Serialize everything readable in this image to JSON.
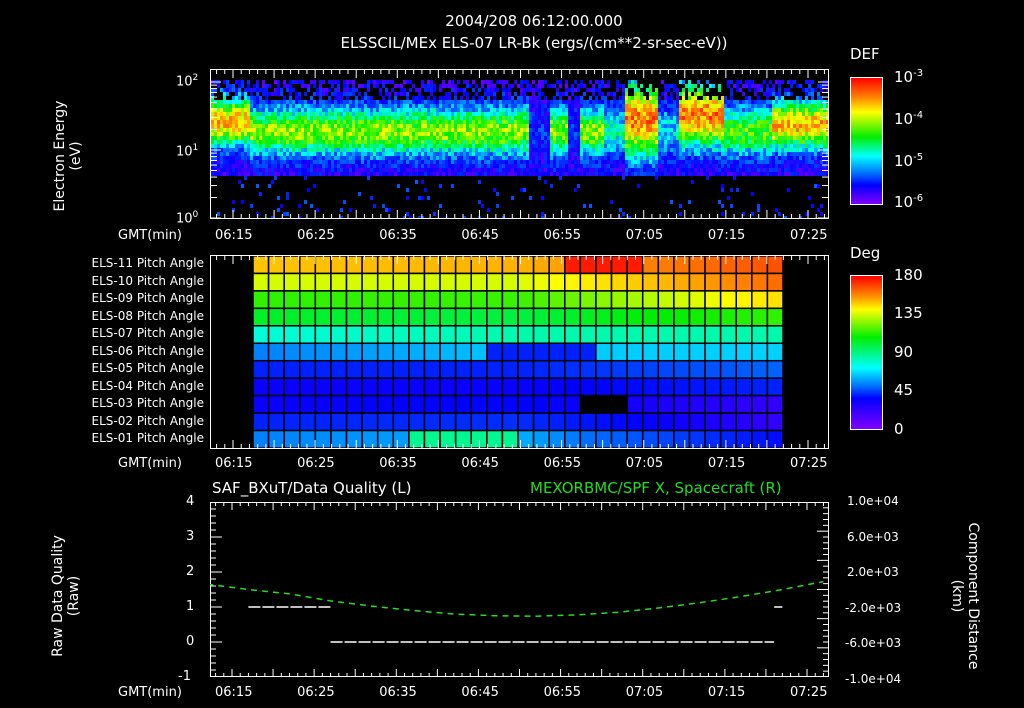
{
  "header": {
    "date_time": "2004/208 06:12:00.000",
    "subtitle": "ELSSCIL/MEx ELS-07 LR-Bk  (ergs/(cm**2-sr-sec-eV))"
  },
  "time_axis": {
    "label": "GMT(min)",
    "ticks": [
      "06:15",
      "06:25",
      "06:35",
      "06:45",
      "06:55",
      "07:05",
      "07:15",
      "07:25"
    ]
  },
  "panel1": {
    "ylabel_line1": "Electron Energy",
    "ylabel_line2": "(eV)",
    "yticks": [
      "10",
      "10",
      "10"
    ],
    "yticks_exp": [
      "2",
      "1",
      "0"
    ],
    "colorbar": {
      "title": "DEF",
      "ticks": [
        "10",
        "10",
        "10",
        "10"
      ],
      "ticks_exp": [
        "-3",
        "-4",
        "-5",
        "-6"
      ]
    }
  },
  "panel2": {
    "rows": [
      "ELS-11 Pitch Angle",
      "ELS-10 Pitch Angle",
      "ELS-09 Pitch Angle",
      "ELS-08 Pitch Angle",
      "ELS-07 Pitch Angle",
      "ELS-06 Pitch Angle",
      "ELS-05 Pitch Angle",
      "ELS-04 Pitch Angle",
      "ELS-03 Pitch Angle",
      "ELS-02 Pitch Angle",
      "ELS-01 Pitch Angle"
    ],
    "colorbar": {
      "title": "Deg",
      "ticks": [
        "180",
        "135",
        "90",
        "45",
        "0"
      ]
    }
  },
  "panel3": {
    "left_title": "SAF_BXuT/Data Quality (L)",
    "right_title": "MEXORBMC/SPF X, Spacecraft (R)",
    "right_title_color": "#22dd22",
    "ylabel_left_line1": "Raw Data Quality",
    "ylabel_left_line2": "(Raw)",
    "ylabel_right_line1": "Component Distance",
    "ylabel_right_line2": "(km)",
    "yticks_left": [
      "4",
      "3",
      "2",
      "1",
      "0",
      "-1"
    ],
    "yticks_right": [
      "1.0e+04",
      "6.0e+03",
      "2.0e+03",
      "-2.0e+03",
      "-6.0e+03",
      "-1.0e+04"
    ]
  },
  "chart_data": [
    {
      "type": "heatmap",
      "title": "ELSSCIL/MEx ELS-07 LR-Bk (ergs/(cm**2-sr-sec-eV))",
      "xlabel": "GMT(min)",
      "ylabel": "Electron Energy (eV)",
      "x_ticks": [
        "06:15",
        "06:25",
        "06:35",
        "06:45",
        "06:55",
        "07:05",
        "07:15",
        "07:25"
      ],
      "y_scale": "log",
      "ylim": [
        1,
        150
      ],
      "colorbar": {
        "label": "DEF",
        "scale": "log",
        "range": [
          1e-06,
          0.001
        ]
      },
      "description": "Electron spectrogram; enhanced flux (~1e-4) between ~5-60 eV with peaks near 06:12-06:18, 07:03-07:06 and 07:09-07:14, and 07:21-07:27; gaps near 06:53 and 06:57; background noise below 4 eV"
    },
    {
      "type": "heatmap",
      "title": "ELS Pitch Angle",
      "xlabel": "GMT(min)",
      "categories": [
        "ELS-11",
        "ELS-10",
        "ELS-09",
        "ELS-08",
        "ELS-07",
        "ELS-06",
        "ELS-05",
        "ELS-04",
        "ELS-03",
        "ELS-02",
        "ELS-01"
      ],
      "x_ticks": [
        "06:15",
        "06:25",
        "06:35",
        "06:45",
        "06:55",
        "07:05",
        "07:15",
        "07:25"
      ],
      "colorbar": {
        "label": "Deg",
        "range": [
          0,
          180
        ],
        "ticks": [
          0,
          45,
          90,
          135,
          180
        ]
      },
      "data_range": [
        "06:17",
        "07:21"
      ],
      "approx_values_start": [
        145,
        130,
        110,
        100,
        80,
        60,
        40,
        30,
        30,
        40,
        60
      ],
      "approx_values_end": [
        165,
        160,
        140,
        110,
        85,
        70,
        55,
        40,
        20,
        20,
        35
      ],
      "missing": [
        {
          "row": "ELS-03",
          "from": "07:01",
          "to": "07:06"
        }
      ]
    },
    {
      "type": "line",
      "title_left": "SAF_BXuT/Data Quality (L)",
      "title_right": "MEXORBMC/SPF X, Spacecraft (R)",
      "xlabel": "GMT(min)",
      "ylabel_left": "Raw Data Quality (Raw)",
      "ylabel_right": "Component Distance (km)",
      "ylim_left": [
        -1,
        4
      ],
      "ylim_right": [
        -10000,
        10000
      ],
      "x": [
        "06:12",
        "06:17",
        "06:22",
        "06:27",
        "06:32",
        "06:37",
        "06:42",
        "06:47",
        "06:52",
        "06:57",
        "07:02",
        "07:07",
        "07:12",
        "07:17",
        "07:22",
        "07:27"
      ],
      "series": [
        {
          "name": "Data Quality",
          "axis": "left",
          "color": "#ffffff",
          "segments": [
            {
              "from": "06:17",
              "to": "06:27",
              "value": 1
            },
            {
              "from": "06:27",
              "to": "07:21",
              "value": 0
            },
            {
              "from": "07:21",
              "to": "07:22",
              "value": 1
            }
          ]
        },
        {
          "name": "SPF X",
          "axis": "right",
          "color": "#22dd22",
          "style": "dashed",
          "values": [
            600,
            0,
            -500,
            -1300,
            -1900,
            -2400,
            -2800,
            -3000,
            -3050,
            -2900,
            -2600,
            -2100,
            -1500,
            -800,
            0,
            900
          ]
        }
      ]
    }
  ]
}
